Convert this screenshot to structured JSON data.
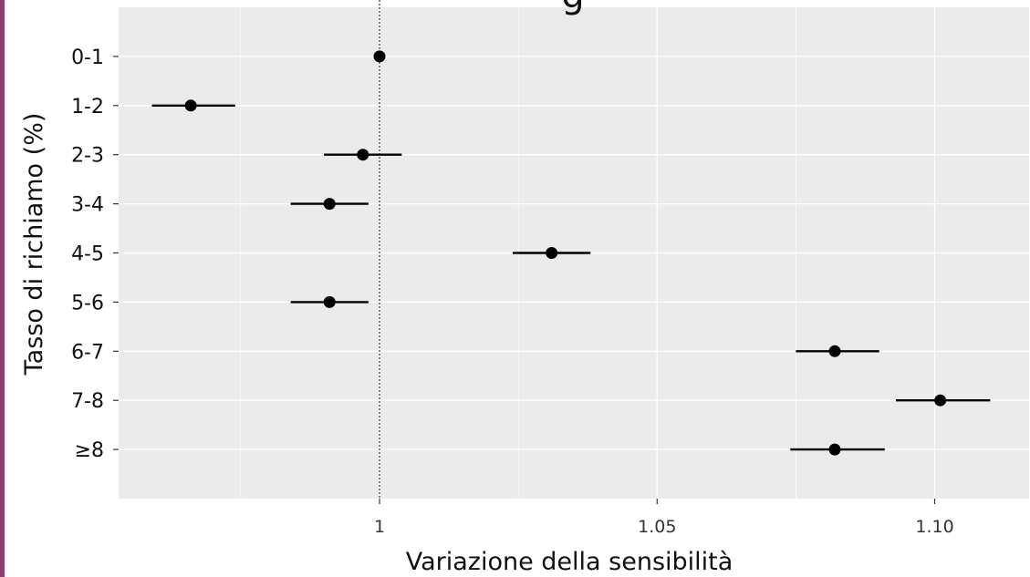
{
  "chart_data": {
    "type": "scatter",
    "title_fragment": "g",
    "xlabel": "Variazione della sensibilità",
    "ylabel": "Tasso di richiamo (%)",
    "xlim": [
      0.953,
      1.117
    ],
    "x_ticks": [
      1.0,
      1.05,
      1.1
    ],
    "x_tick_labels": [
      "1",
      "1.05",
      "1.10"
    ],
    "categories": [
      "0-1",
      "1-2",
      "2-3",
      "3-4",
      "4-5",
      "5-6",
      "6-7",
      "7-8",
      "≥8"
    ],
    "points": [
      {
        "category": "0-1",
        "value": 1.0,
        "ci_low": null,
        "ci_high": null
      },
      {
        "category": "1-2",
        "value": 0.966,
        "ci_low": 0.959,
        "ci_high": 0.974
      },
      {
        "category": "2-3",
        "value": 0.997,
        "ci_low": 0.99,
        "ci_high": 1.004
      },
      {
        "category": "3-4",
        "value": 0.991,
        "ci_low": 0.984,
        "ci_high": 0.998
      },
      {
        "category": "4-5",
        "value": 1.031,
        "ci_low": 1.024,
        "ci_high": 1.038
      },
      {
        "category": "5-6",
        "value": 0.991,
        "ci_low": 0.984,
        "ci_high": 0.998
      },
      {
        "category": "6-7",
        "value": 1.082,
        "ci_low": 1.075,
        "ci_high": 1.09
      },
      {
        "category": "7-8",
        "value": 1.101,
        "ci_low": 1.093,
        "ci_high": 1.11
      },
      {
        "category": "≥8",
        "value": 1.082,
        "ci_low": 1.074,
        "ci_high": 1.091
      }
    ],
    "reference_line": 1.0,
    "grid": true,
    "legend": "none",
    "colors": {
      "panel": "#ebebeb",
      "grid": "#ffffff",
      "point": "#000000",
      "border": "#8a4068"
    }
  }
}
